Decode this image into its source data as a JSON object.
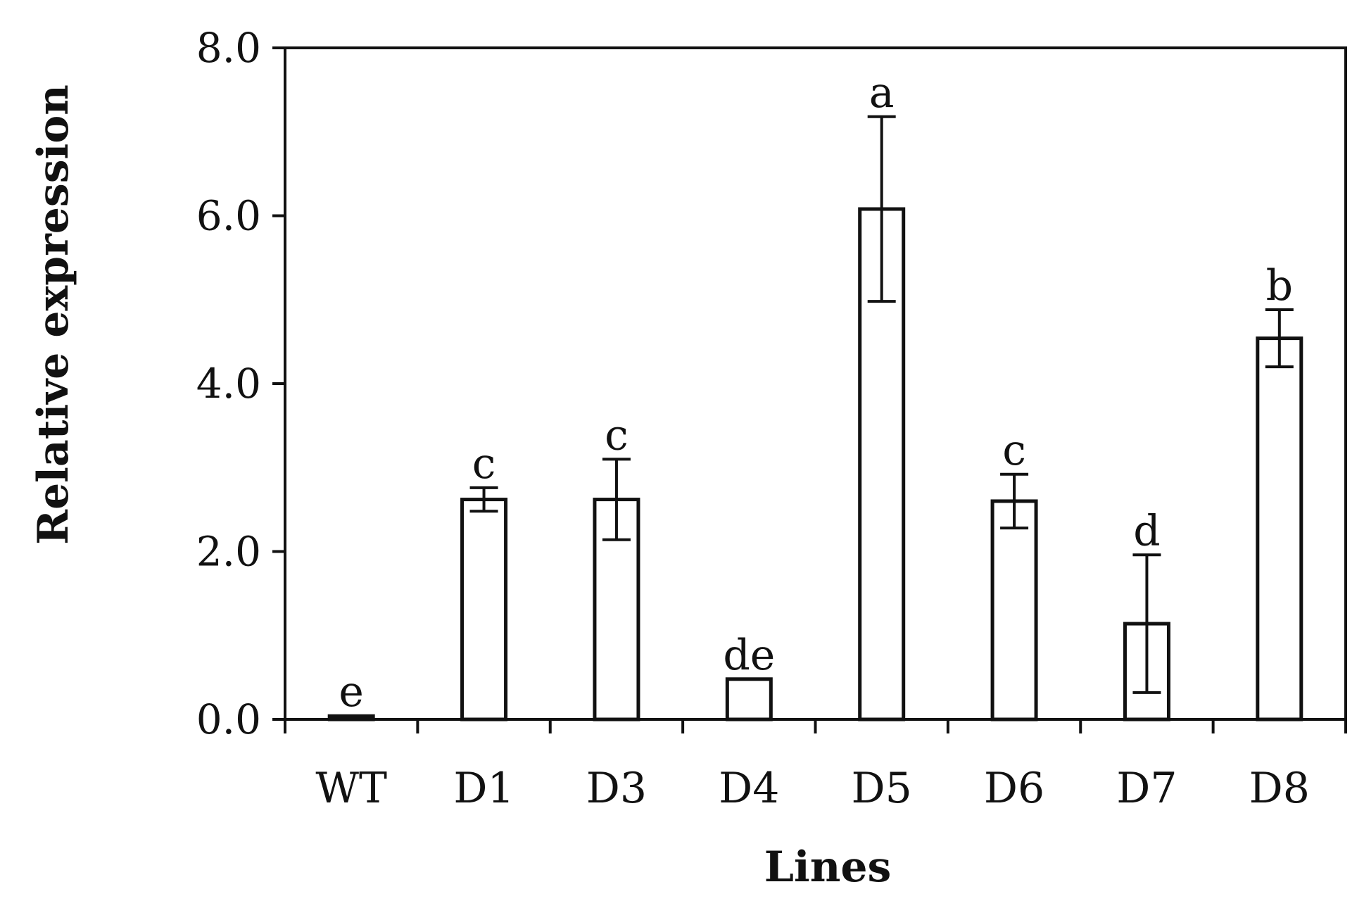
{
  "chart_data": {
    "type": "bar",
    "title": "",
    "xlabel": "Lines",
    "ylabel": "Relative expression",
    "categories": [
      "WT",
      "D1",
      "D3",
      "D4",
      "D5",
      "D6",
      "D7",
      "D8"
    ],
    "values": [
      0.04,
      2.62,
      2.62,
      0.48,
      6.08,
      2.6,
      1.14,
      4.54
    ],
    "error_low": [
      0.04,
      2.48,
      2.14,
      0.48,
      4.98,
      2.28,
      0.32,
      4.2
    ],
    "error_high": [
      0.04,
      2.76,
      3.1,
      0.48,
      7.18,
      2.92,
      1.96,
      4.88
    ],
    "significance": [
      "e",
      "c",
      "c",
      "de",
      "a",
      "c",
      "d",
      "b"
    ],
    "ylim": [
      0,
      8
    ],
    "yticks": [
      "0.0",
      "2.0",
      "4.0",
      "6.0",
      "8.0"
    ],
    "grid": false,
    "bar_fill": "#ffffff",
    "stroke_color": "#111111"
  }
}
